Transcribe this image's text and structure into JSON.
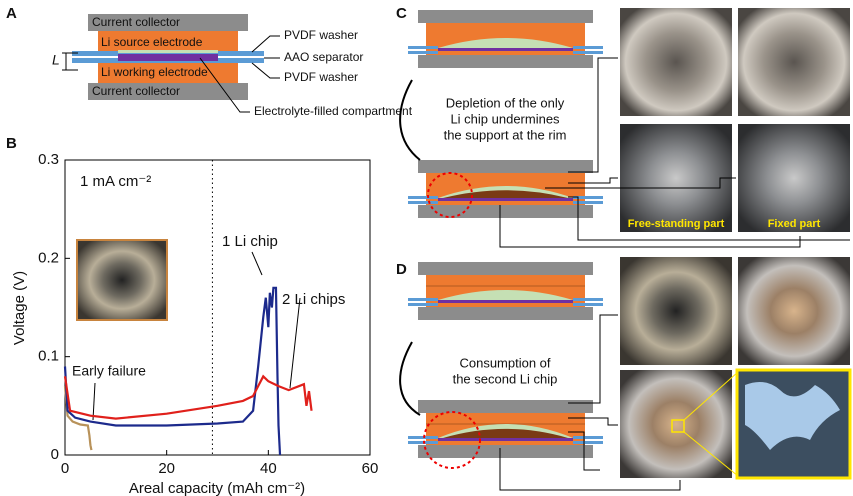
{
  "panel_labels": [
    "A",
    "B",
    "C",
    "D"
  ],
  "schematic_a": {
    "top_collector": "Current collector",
    "source": "Li source electrode",
    "working": "Li working electrode",
    "bottom_collector": "Current collector",
    "washer_top": "PVDF washer",
    "separator": "AAO separator",
    "washer_bottom": "PVDF washer",
    "compartment": "Electrolyte-filled compartment",
    "gap": "L"
  },
  "panel_c": {
    "caption": [
      "Depletion of the only",
      "Li chip undermines",
      "the support at the rim"
    ],
    "photo_labels": [
      "Free-standing part",
      "Fixed part"
    ]
  },
  "panel_d": {
    "caption": [
      "Consumption of",
      "the second Li chip"
    ]
  },
  "chart_data": {
    "type": "line",
    "annotations": [
      "1 mA cm⁻²"
    ],
    "xlabel": "Areal capacity  (mAh cm⁻²)",
    "ylabel": "Voltage (V)",
    "xlim": [
      0,
      60
    ],
    "ylim": [
      0,
      0.3
    ],
    "xticks": [
      0,
      20,
      40,
      60
    ],
    "yticks": [
      0,
      0.1,
      0.2,
      0.3
    ],
    "vline": 29,
    "series": [
      {
        "name": "Early failure",
        "color": "#b8925a",
        "x": [
          0,
          0.5,
          1.5,
          3,
          4.5,
          4.8,
          5,
          5.2
        ],
        "values": [
          0.07,
          0.04,
          0.034,
          0.031,
          0.03,
          0.02,
          0.01,
          0.005
        ]
      },
      {
        "name": "1 Li chip",
        "color": "#1c2a8c",
        "x": [
          0,
          0.5,
          2,
          5,
          10,
          20,
          30,
          35,
          37,
          38,
          39,
          39.5,
          40,
          40.3,
          40.7,
          41,
          41.5,
          41.8,
          42,
          42.3
        ],
        "values": [
          0.09,
          0.045,
          0.038,
          0.034,
          0.03,
          0.03,
          0.032,
          0.034,
          0.045,
          0.09,
          0.14,
          0.16,
          0.13,
          0.165,
          0.15,
          0.17,
          0.17,
          0.08,
          0.03,
          0
        ]
      },
      {
        "name": "2 Li chips",
        "color": "#e0201b",
        "x": [
          0,
          1,
          5,
          10,
          20,
          30,
          35,
          37,
          38,
          39,
          40,
          42,
          44,
          46,
          47,
          47.5,
          48,
          48.5
        ],
        "values": [
          0.08,
          0.045,
          0.04,
          0.037,
          0.042,
          0.05,
          0.055,
          0.06,
          0.07,
          0.08,
          0.075,
          0.07,
          0.066,
          0.07,
          0.072,
          0.05,
          0.065,
          0.045
        ]
      }
    ]
  }
}
